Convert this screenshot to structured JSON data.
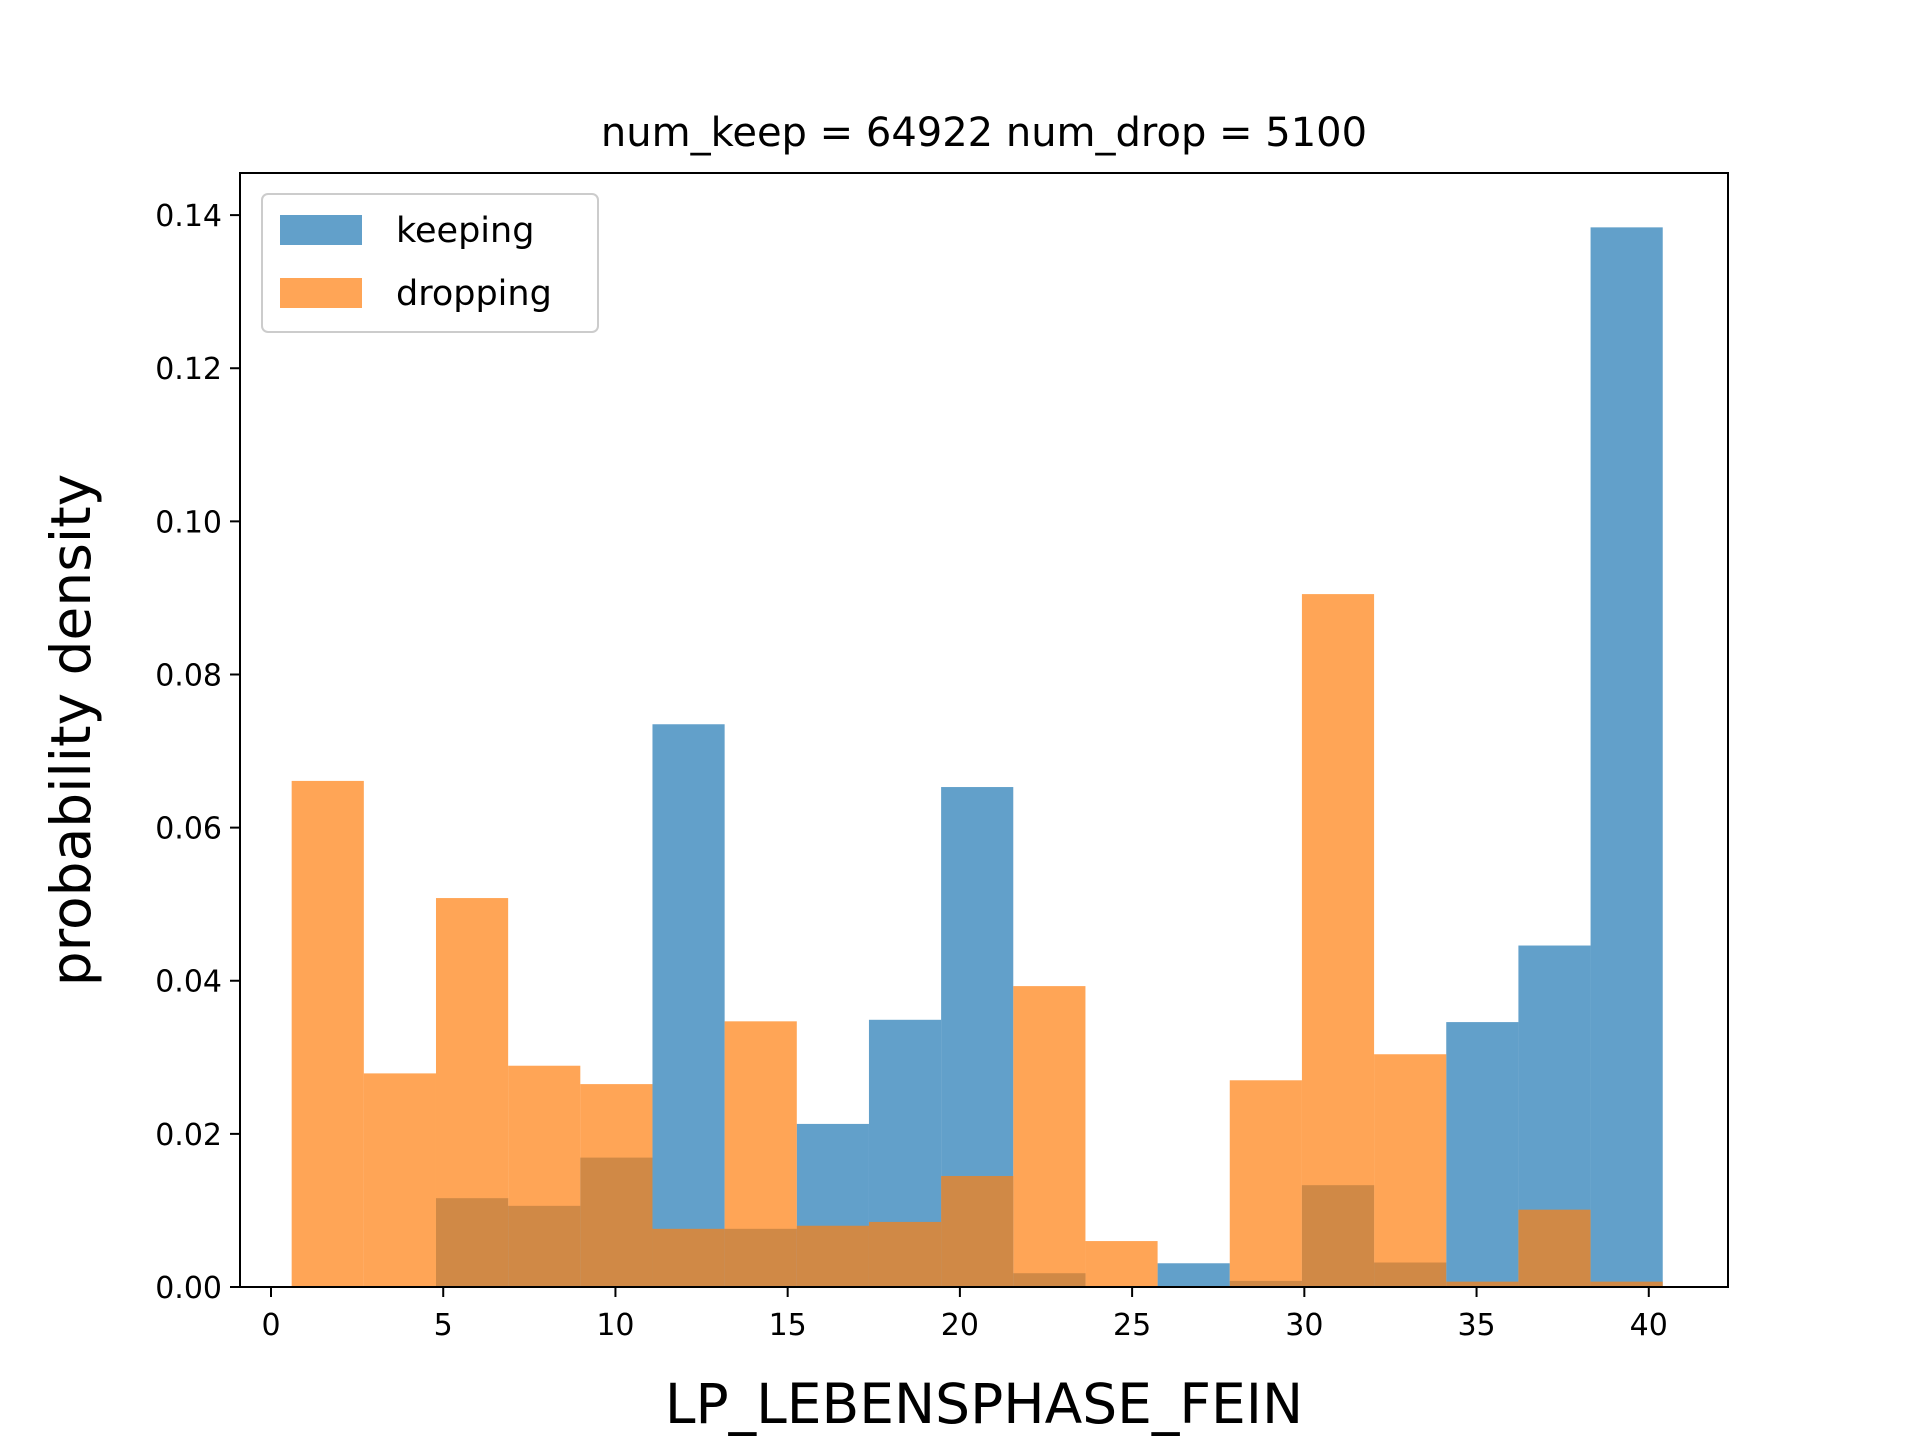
{
  "chart_data": {
    "type": "bar",
    "title": "num_keep = 64922  num_drop = 5100",
    "xlabel": "LP_LEBENSPHASE_FEIN",
    "ylabel": "probability density",
    "xlim": [
      -0.9,
      42.3
    ],
    "ylim": [
      0,
      0.1455
    ],
    "xticks": [
      0,
      5,
      10,
      15,
      20,
      25,
      30,
      35,
      40
    ],
    "yticks": [
      0.0,
      0.02,
      0.04,
      0.06,
      0.08,
      0.1,
      0.12,
      0.14
    ],
    "ytick_labels": [
      "0.00",
      "0.02",
      "0.04",
      "0.06",
      "0.08",
      "0.10",
      "0.12",
      "0.14"
    ],
    "bin_edges": [
      0.6,
      2.695,
      4.79,
      6.885,
      8.98,
      11.075,
      13.17,
      15.265,
      17.36,
      19.455,
      21.55,
      23.645,
      25.74,
      27.835,
      29.93,
      32.025,
      34.12,
      36.215,
      38.31,
      40.405
    ],
    "grid": false,
    "legend_position": "upper-left",
    "series": [
      {
        "name": "keeping",
        "color": "#1f77b4",
        "opacity": 0.7,
        "values": [
          0.0,
          0.0,
          0.0116,
          0.0106,
          0.0169,
          0.0735,
          0.0076,
          0.0213,
          0.0349,
          0.0653,
          0.0018,
          0.0,
          0.0031,
          0.0008,
          0.0133,
          0.0032,
          0.0346,
          0.0446,
          0.1384
        ]
      },
      {
        "name": "dropping",
        "color": "#ff7f0e",
        "opacity": 0.7,
        "values": [
          0.0661,
          0.0279,
          0.0508,
          0.0289,
          0.0265,
          0.0076,
          0.0347,
          0.008,
          0.0085,
          0.0145,
          0.0393,
          0.006,
          0.0,
          0.027,
          0.0905,
          0.0304,
          0.0007,
          0.0101,
          0.0007
        ]
      }
    ]
  }
}
